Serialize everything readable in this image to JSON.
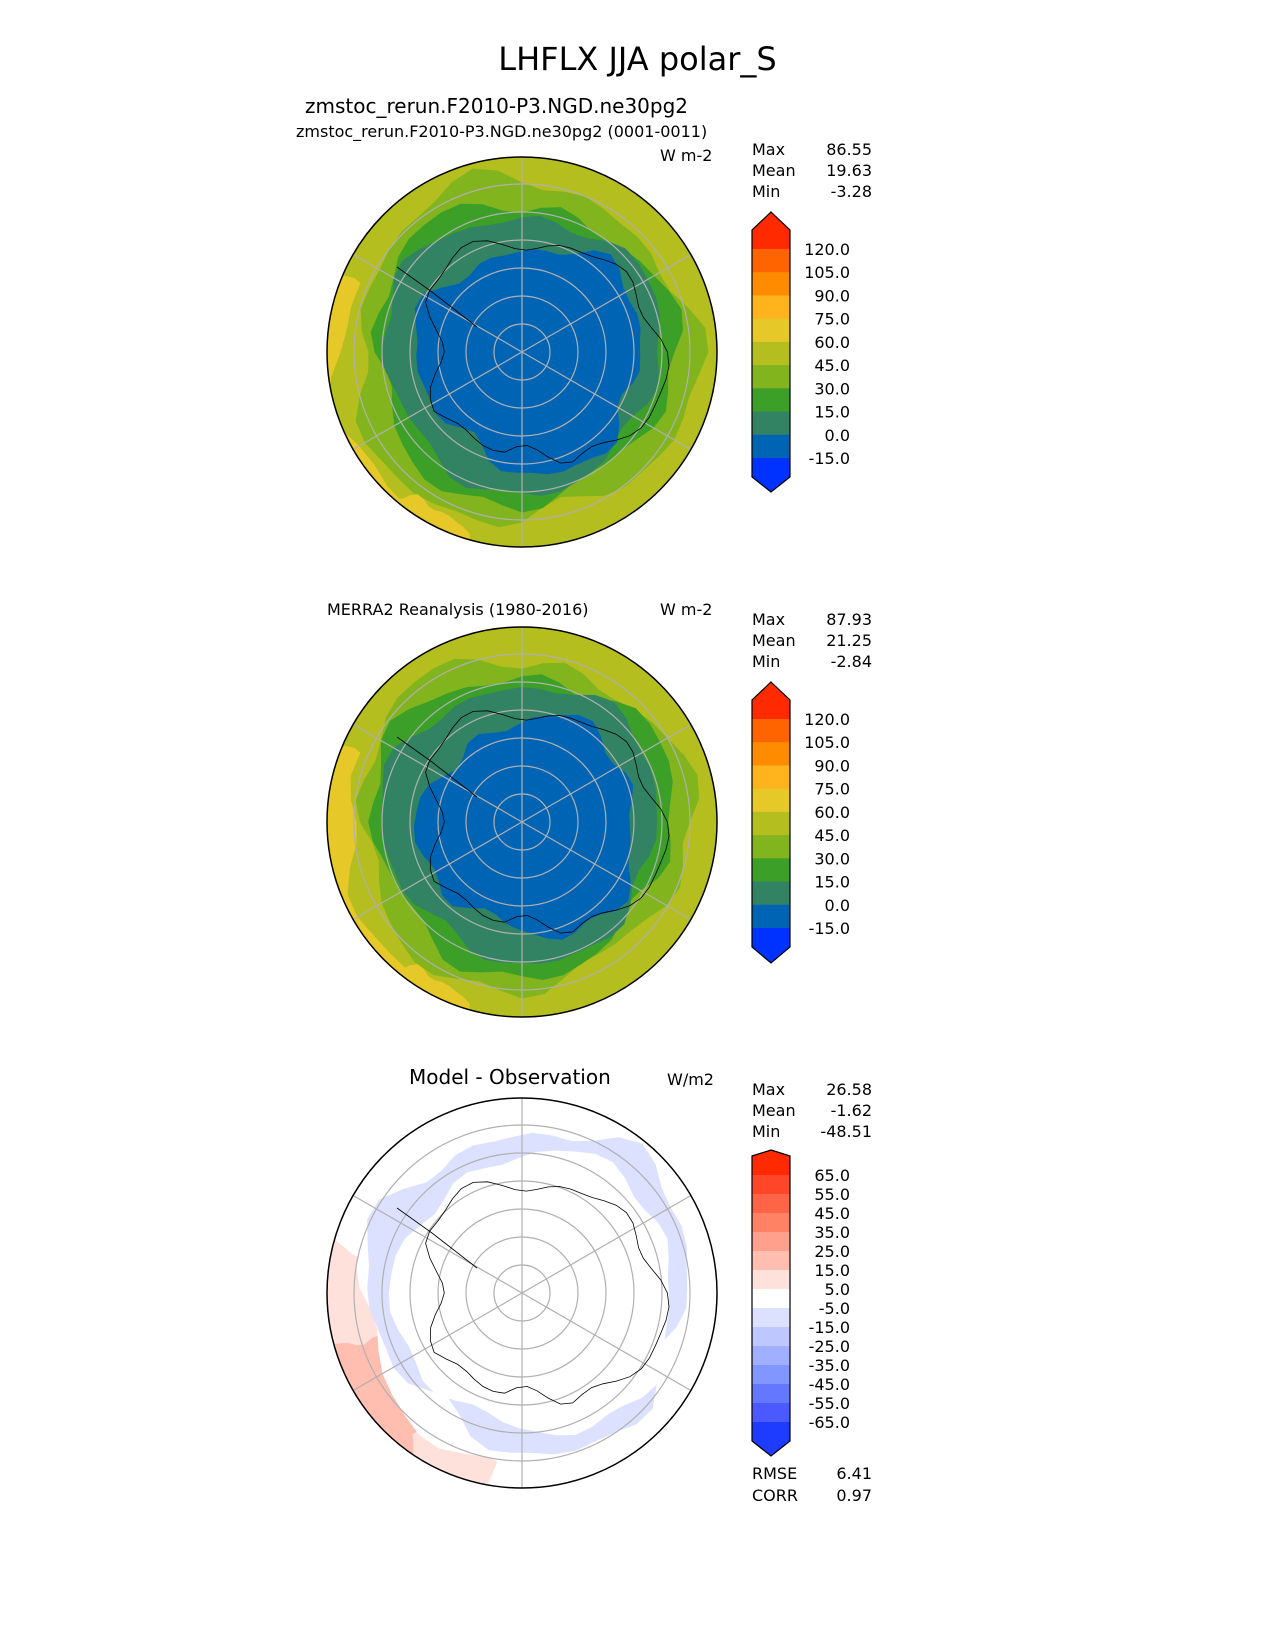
{
  "suptitle": "LHFLX JJA polar_S",
  "panels": [
    {
      "title_center": "zmstoc_rerun.F2010-P3.NGD.ne30pg2",
      "title_left": "zmstoc_rerun.F2010-P3.NGD.ne30pg2 (0001-0011)",
      "units": "W m-2",
      "stats": {
        "max_label": "Max",
        "max": "86.55",
        "mean_label": "Mean",
        "mean": "19.63",
        "min_label": "Min",
        "min": "-3.28"
      },
      "colorbar": {
        "ticks": [
          "120.0",
          "105.0",
          "90.0",
          "75.0",
          "60.0",
          "45.0",
          "30.0",
          "15.0",
          "0.0",
          "-15.0"
        ],
        "colors": [
          "#ff2a00",
          "#ff6400",
          "#ff8c00",
          "#ffb41e",
          "#e6c828",
          "#b4be1e",
          "#82b41e",
          "#3ca028",
          "#328264",
          "#0064b4",
          "#0032ff"
        ]
      }
    },
    {
      "title_left": "MERRA2 Reanalysis (1980-2016)",
      "units": "W m-2",
      "stats": {
        "max_label": "Max",
        "max": "87.93",
        "mean_label": "Mean",
        "mean": "21.25",
        "min_label": "Min",
        "min": "-2.84"
      },
      "colorbar": {
        "ticks": [
          "120.0",
          "105.0",
          "90.0",
          "75.0",
          "60.0",
          "45.0",
          "30.0",
          "15.0",
          "0.0",
          "-15.0"
        ],
        "colors": [
          "#ff2a00",
          "#ff6400",
          "#ff8c00",
          "#ffb41e",
          "#e6c828",
          "#b4be1e",
          "#82b41e",
          "#3ca028",
          "#328264",
          "#0064b4",
          "#0032ff"
        ]
      }
    },
    {
      "title_center": "Model - Observation",
      "units": "W/m2",
      "stats": {
        "max_label": "Max",
        "max": "26.58",
        "mean_label": "Mean",
        "mean": "-1.62",
        "min_label": "Min",
        "min": "-48.51"
      },
      "colorbar": {
        "ticks": [
          "65.0",
          "55.0",
          "45.0",
          "35.0",
          "25.0",
          "15.0",
          "5.0",
          "-5.0",
          "-15.0",
          "-25.0",
          "-35.0",
          "-45.0",
          "-55.0",
          "-65.0"
        ],
        "colors": [
          "#ff2a00",
          "#ff4628",
          "#ff6446",
          "#ff8264",
          "#ffa08c",
          "#ffbeaf",
          "#ffe1dc",
          "#ffffff",
          "#dce1ff",
          "#bec8ff",
          "#a0afff",
          "#8296ff",
          "#6478ff",
          "#4a5aff",
          "#1e3cff"
        ]
      },
      "metrics": {
        "rmse_label": "RMSE",
        "rmse": "6.41",
        "corr_label": "CORR",
        "corr": "0.97"
      }
    }
  ],
  "chart_data": {
    "type": "heatmap",
    "title": "LHFLX JJA polar_S",
    "projection": "south polar stereographic",
    "variable": "Latent heat flux",
    "panels": [
      {
        "name": "Test: zmstoc_rerun.F2010-P3.NGD.ne30pg2 (0001-0011)",
        "units": "W m-2",
        "max": 86.55,
        "mean": 19.63,
        "min": -3.28,
        "levels": [
          -15,
          0,
          15,
          30,
          45,
          60,
          75,
          90,
          105,
          120
        ]
      },
      {
        "name": "Reference: MERRA2 Reanalysis (1980-2016)",
        "units": "W m-2",
        "max": 87.93,
        "mean": 21.25,
        "min": -2.84,
        "levels": [
          -15,
          0,
          15,
          30,
          45,
          60,
          75,
          90,
          105,
          120
        ]
      },
      {
        "name": "Model - Observation",
        "units": "W/m2",
        "max": 26.58,
        "mean": -1.62,
        "min": -48.51,
        "rmse": 6.41,
        "corr": 0.97,
        "levels": [
          -65,
          -55,
          -45,
          -35,
          -25,
          -15,
          -5,
          5,
          15,
          25,
          35,
          45,
          55,
          65
        ]
      }
    ]
  }
}
